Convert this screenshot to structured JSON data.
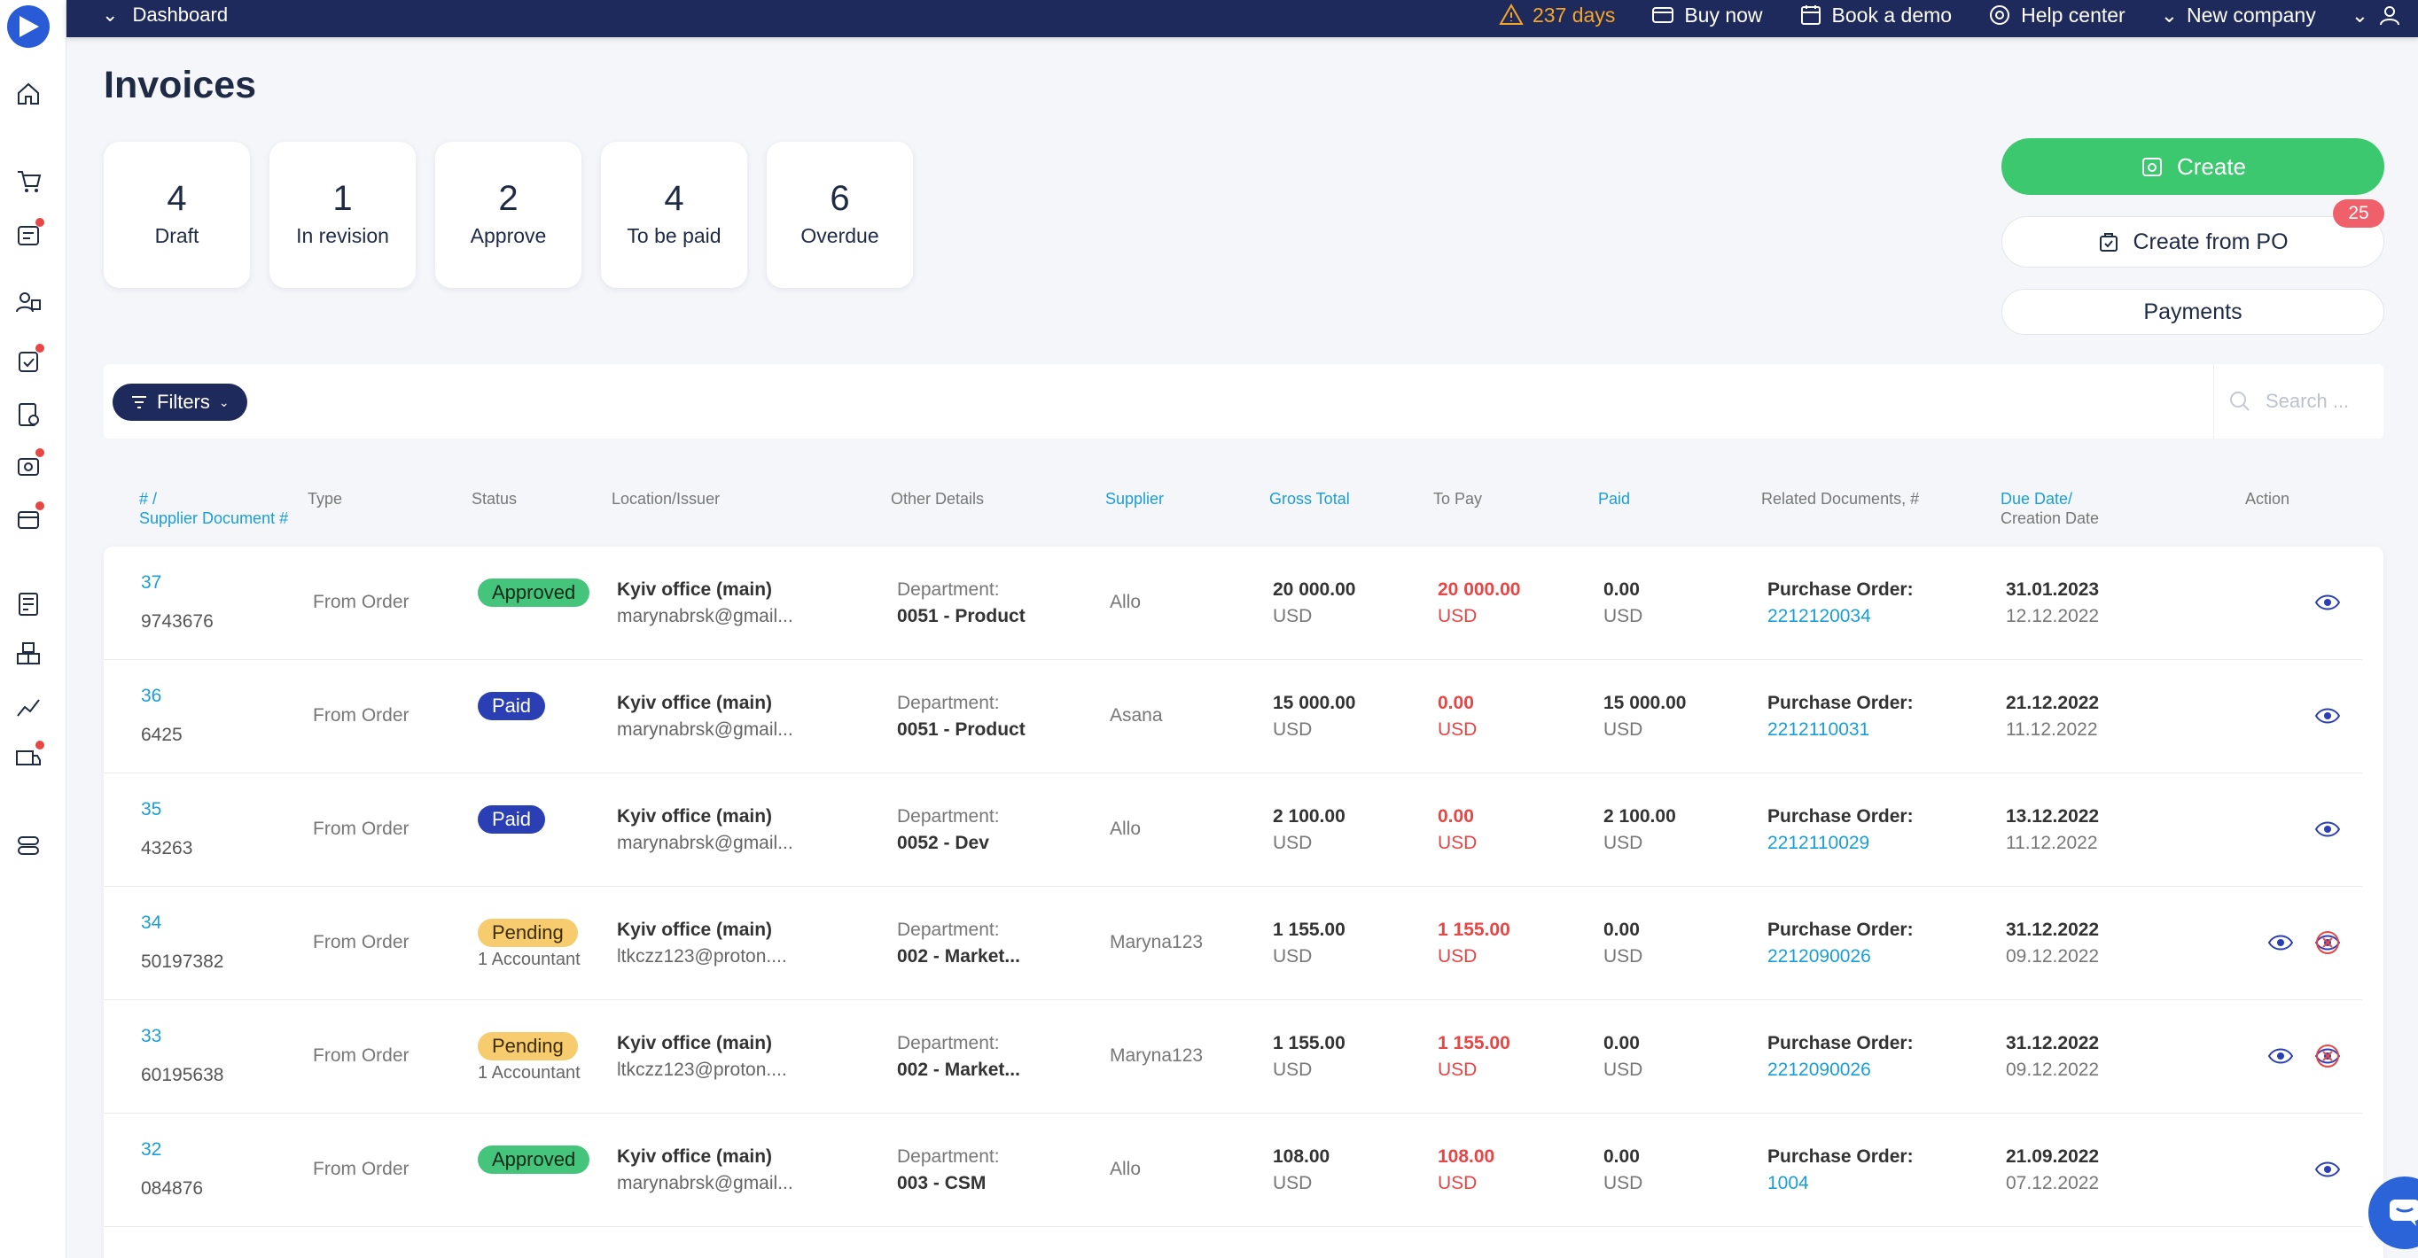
{
  "topbar": {
    "breadcrumb": "Dashboard",
    "trial": "237 days",
    "buy_now": "Buy now",
    "book_demo": "Book a demo",
    "help_center": "Help center",
    "company": "New company"
  },
  "page": {
    "title": "Invoices"
  },
  "stats": [
    {
      "value": "4",
      "label": "Draft"
    },
    {
      "value": "1",
      "label": "In revision"
    },
    {
      "value": "2",
      "label": "Approve"
    },
    {
      "value": "4",
      "label": "To be paid"
    },
    {
      "value": "6",
      "label": "Overdue"
    }
  ],
  "actions": {
    "create": "Create",
    "create_from_po": "Create from PO",
    "create_from_po_count": "25",
    "payments": "Payments"
  },
  "filters": {
    "label": "Filters",
    "search_placeholder": "Search ..."
  },
  "columns": {
    "num": "# /",
    "num2": "Supplier Document #",
    "type": "Type",
    "status": "Status",
    "location": "Location/Issuer",
    "other": "Other Details",
    "supplier": "Supplier",
    "gross": "Gross Total",
    "topay": "To Pay",
    "paid": "Paid",
    "related": "Related Documents, #",
    "due": "Due Date/",
    "due2": "Creation Date",
    "action": "Action"
  },
  "rows": [
    {
      "id": "37",
      "doc": "9743676",
      "type": "From Order",
      "status": "Approved",
      "status_sub": "",
      "loc": "Kyiv office (main)",
      "issuer": "marynabrsk@gmail...",
      "dept_label": "Department:",
      "dept": "0051 - Product",
      "supplier": "Allo",
      "gross": "20 000.00",
      "gross_cur": "USD",
      "topay": "20 000.00",
      "topay_cur": "USD",
      "paid": "0.00",
      "paid_cur": "USD",
      "rel_label": "Purchase Order:",
      "rel": "2212120034",
      "due": "31.01.2023",
      "created": "12.12.2022"
    },
    {
      "id": "36",
      "doc": "6425",
      "type": "From Order",
      "status": "Paid",
      "status_sub": "",
      "loc": "Kyiv office (main)",
      "issuer": "marynabrsk@gmail...",
      "dept_label": "Department:",
      "dept": "0051 - Product",
      "supplier": "Asana",
      "gross": "15 000.00",
      "gross_cur": "USD",
      "topay": "0.00",
      "topay_cur": "USD",
      "paid": "15 000.00",
      "paid_cur": "USD",
      "rel_label": "Purchase Order:",
      "rel": "2212110031",
      "due": "21.12.2022",
      "created": "11.12.2022"
    },
    {
      "id": "35",
      "doc": "43263",
      "type": "From Order",
      "status": "Paid",
      "status_sub": "",
      "loc": "Kyiv office (main)",
      "issuer": "marynabrsk@gmail...",
      "dept_label": "Department:",
      "dept": "0052 - Dev",
      "supplier": "Allo",
      "gross": "2 100.00",
      "gross_cur": "USD",
      "topay": "0.00",
      "topay_cur": "USD",
      "paid": "2 100.00",
      "paid_cur": "USD",
      "rel_label": "Purchase Order:",
      "rel": "2212110029",
      "due": "13.12.2022",
      "created": "11.12.2022"
    },
    {
      "id": "34",
      "doc": "50197382",
      "type": "From Order",
      "status": "Pending",
      "status_sub": "1 Accountant",
      "loc": "Kyiv office (main)",
      "issuer": "ltkczz123@proton....",
      "dept_label": "Department:",
      "dept": "002 - Market...",
      "supplier": "Maryna123",
      "gross": "1 155.00",
      "gross_cur": "USD",
      "topay": "1 155.00",
      "topay_cur": "USD",
      "paid": "0.00",
      "paid_cur": "USD",
      "rel_label": "Purchase Order:",
      "rel": "2212090026",
      "due": "31.12.2022",
      "created": "09.12.2022"
    },
    {
      "id": "33",
      "doc": "60195638",
      "type": "From Order",
      "status": "Pending",
      "status_sub": "1 Accountant",
      "loc": "Kyiv office (main)",
      "issuer": "ltkczz123@proton....",
      "dept_label": "Department:",
      "dept": "002 - Market...",
      "supplier": "Maryna123",
      "gross": "1 155.00",
      "gross_cur": "USD",
      "topay": "1 155.00",
      "topay_cur": "USD",
      "paid": "0.00",
      "paid_cur": "USD",
      "rel_label": "Purchase Order:",
      "rel": "2212090026",
      "due": "31.12.2022",
      "created": "09.12.2022"
    },
    {
      "id": "32",
      "doc": "084876",
      "type": "From Order",
      "status": "Approved",
      "status_sub": "",
      "loc": "Kyiv office (main)",
      "issuer": "marynabrsk@gmail...",
      "dept_label": "Department:",
      "dept": "003 - CSM",
      "supplier": "Allo",
      "gross": "108.00",
      "gross_cur": "USD",
      "topay": "108.00",
      "topay_cur": "USD",
      "paid": "0.00",
      "paid_cur": "USD",
      "rel_label": "Purchase Order:",
      "rel": "1004",
      "due": "21.09.2022",
      "created": "07.12.2022"
    }
  ],
  "colors": {
    "topbar": "#1f2a5c",
    "create": "#3cc86e",
    "link": "#1a9ed8",
    "danger": "#e84545"
  }
}
